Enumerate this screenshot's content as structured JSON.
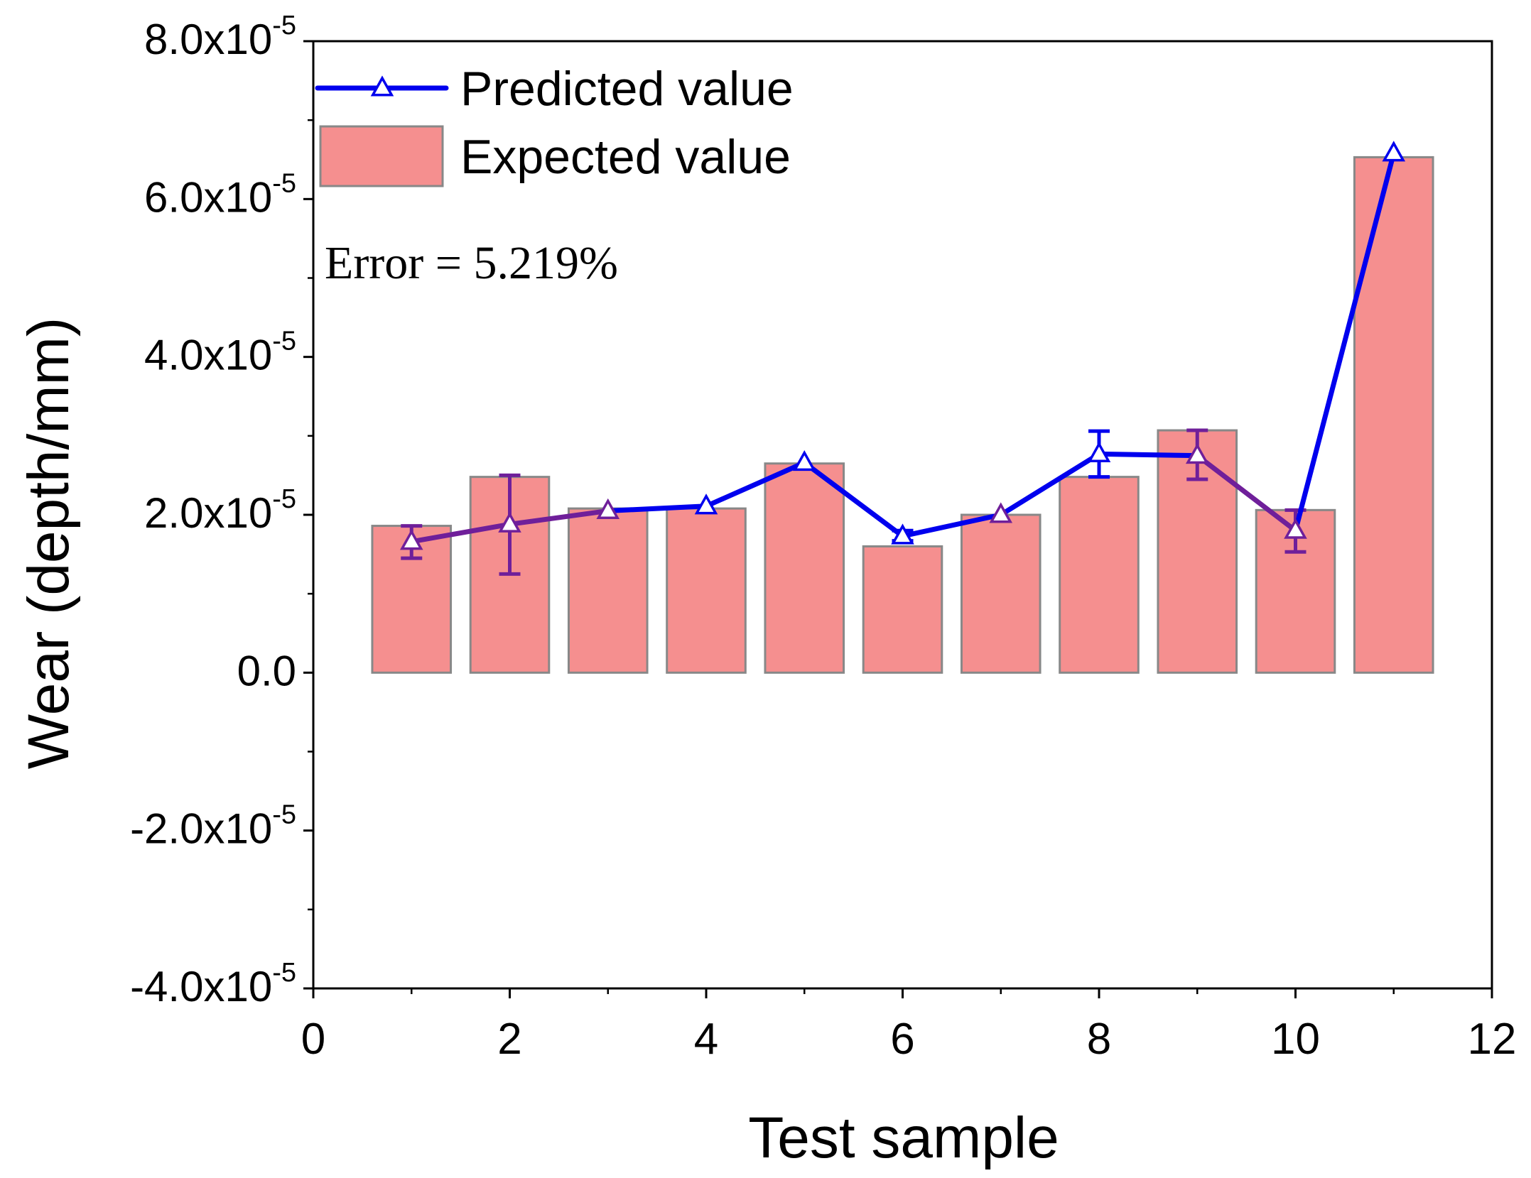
{
  "chart_data": {
    "type": "bar+line",
    "xlabel": "Test sample",
    "ylabel": "Wear (depth/mm)",
    "xlim": [
      0,
      12
    ],
    "ylim": [
      -4e-05,
      8e-05
    ],
    "x_ticks": [
      0,
      2,
      4,
      6,
      8,
      10,
      12
    ],
    "y_ticks": [
      {
        "value": 8e-05,
        "mantissa": "8.0x10",
        "exp": "-5"
      },
      {
        "value": 6e-05,
        "mantissa": "6.0x10",
        "exp": "-5"
      },
      {
        "value": 4e-05,
        "mantissa": "4.0x10",
        "exp": "-5"
      },
      {
        "value": 2e-05,
        "mantissa": "2.0x10",
        "exp": "-5"
      },
      {
        "value": 0,
        "mantissa": "0.0",
        "exp": ""
      },
      {
        "value": -2e-05,
        "mantissa": "-2.0x10",
        "exp": "-5"
      },
      {
        "value": -4e-05,
        "mantissa": "-4.0x10",
        "exp": "-5"
      }
    ],
    "bar_width": 0.8,
    "series": [
      {
        "name": "Expected value",
        "kind": "bar",
        "x": [
          1,
          2,
          3,
          4,
          5,
          6,
          7,
          8,
          9,
          10,
          11
        ],
        "values": [
          1.86e-05,
          2.48e-05,
          2.08e-05,
          2.08e-05,
          2.65e-05,
          1.6e-05,
          2e-05,
          2.48e-05,
          3.07e-05,
          2.06e-05,
          6.53e-05
        ],
        "color": "#f58f8f",
        "edge_color": "#888888"
      },
      {
        "name": "Predicted value",
        "kind": "line",
        "marker": "open-triangle",
        "x": [
          1,
          2,
          3,
          4,
          5,
          6,
          7,
          8,
          9,
          10,
          11
        ],
        "values": [
          1.66e-05,
          1.88e-05,
          2.05e-05,
          2.11e-05,
          2.66e-05,
          1.73e-05,
          2e-05,
          2.77e-05,
          2.75e-05,
          1.8e-05,
          6.58e-05
        ],
        "error_low": [
          1.45e-05,
          1.25e-05,
          2e-05,
          2.08e-05,
          2.62e-05,
          1.67e-05,
          1.98e-05,
          2.48e-05,
          2.45e-05,
          1.53e-05,
          6.55e-05
        ],
        "error_high": [
          1.86e-05,
          2.5e-05,
          2.1e-05,
          2.14e-05,
          2.7e-05,
          1.8e-05,
          2.02e-05,
          3.06e-05,
          3.07e-05,
          2.06e-05,
          6.6e-05
        ],
        "color": "#0000ee",
        "overlap_color": "#6f1f9a"
      }
    ],
    "legend": {
      "placement": "top-left",
      "entries": [
        {
          "label": "Predicted value"
        },
        {
          "label": "Expected value"
        }
      ]
    },
    "annotation": "Error = 5.219%"
  }
}
